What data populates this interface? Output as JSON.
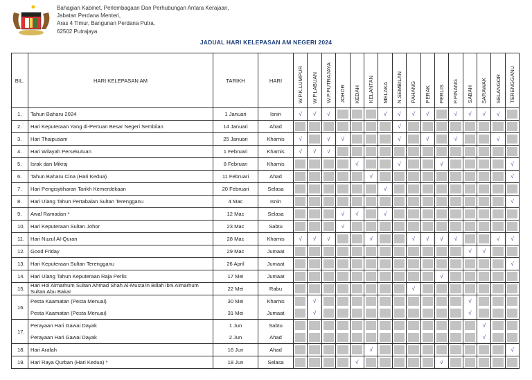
{
  "letterhead": {
    "lines": [
      "Bahagian Kabinet, Perlembagaan Dan Perhubungan Antara  Kerajaan,",
      "Jabatan Perdana Menteri,",
      "Aras 4 Timur, Bangunan Perdana Putra,",
      "62502 Putrajaya"
    ],
    "crest_icon": "malaysia-coat-of-arms"
  },
  "title": "JADUAL HARI KELEPASAN AM NEGERI 2024",
  "headers": {
    "bil": "BIL.",
    "name": "HARI KELEPASAN AM",
    "date": "TARIKH",
    "day": "HARI"
  },
  "states": [
    "W.P.K.LUMPUR",
    "W.P.LABUAN",
    "W.P.PUTRAJAYA",
    "JOHOR",
    "KEDAH",
    "KELANTAN",
    "MELAKA",
    "N.SEMBILAN",
    "PAHANG",
    "PERAK",
    "PERLIS",
    "P.PINANG",
    "SABAH",
    "SARAWAK",
    "SELANGOR",
    "TERENGGANU"
  ],
  "check_mark": "√",
  "colors": {
    "title": "#1f3f7a",
    "no_holiday": "#c3c3c3",
    "check": "#3a3a8a"
  },
  "rows": [
    {
      "bil": "1.",
      "items": [
        {
          "name": "Tahun Baharu 2024",
          "date": "1 Januari",
          "day": "Isnin",
          "marks": "1110001111011110"
        }
      ]
    },
    {
      "bil": "2.",
      "items": [
        {
          "name": "Hari Keputeraan Yang di-Pertuan Besar Negeri Sembilan",
          "date": "14 Januari",
          "day": "Ahad",
          "marks": "0000000100000000"
        }
      ]
    },
    {
      "bil": "3.",
      "items": [
        {
          "name": "Hari Thaipusam",
          "date": "25 Januari",
          "day": "Khamis",
          "marks": "1011000101010010"
        }
      ]
    },
    {
      "bil": "4.",
      "items": [
        {
          "name": "Hari Wilayah Persekutuan",
          "date": "1 Februari",
          "day": "Khamis",
          "marks": "1110000000000000"
        }
      ]
    },
    {
      "bil": "5.",
      "items": [
        {
          "name": "Israk dan Mikraj",
          "date": "8 Februari",
          "day": "Khamis",
          "marks": "0000100100100001"
        }
      ]
    },
    {
      "bil": "6.",
      "items": [
        {
          "name": "Tahun Baharu Cina (Hari Kedua)",
          "date": "11 Februari",
          "day": "Ahad",
          "marks": "0000010000000001"
        }
      ]
    },
    {
      "bil": "7.",
      "items": [
        {
          "name": "Hari Pengisytiharan Tarikh Kemerdekaan",
          "date": "20 Februari",
          "day": "Selasa",
          "marks": "0000001000000000"
        }
      ]
    },
    {
      "bil": "8.",
      "items": [
        {
          "name": "Hari Ulang Tahun Pertabalan Sultan Terengganu",
          "date": "4 Mac",
          "day": "Isnin",
          "marks": "0000000000000001"
        }
      ]
    },
    {
      "bil": "9.",
      "items": [
        {
          "name": "Awal Ramadan *",
          "date": "12 Mac",
          "day": "Selasa",
          "marks": "0001101000000000"
        }
      ]
    },
    {
      "bil": "10.",
      "items": [
        {
          "name": "Hari Keputeraan Sultan Johor",
          "date": "23 Mac",
          "day": "Sabtu",
          "marks": "0001000000000000"
        }
      ]
    },
    {
      "bil": "11.",
      "items": [
        {
          "name": "Hari Nuzul Al-Quran",
          "date": "28 Mac",
          "day": "Khamis",
          "marks": "1110010011110011"
        }
      ]
    },
    {
      "bil": "12.",
      "items": [
        {
          "name": "Good Friday",
          "date": "29 Mac",
          "day": "Jumaat",
          "marks": "0000000000001100"
        }
      ]
    },
    {
      "bil": "13.",
      "items": [
        {
          "name": "Hari Keputeraan Sultan Terengganu",
          "date": "26 April",
          "day": "Jumaat",
          "marks": "0000000000000001"
        }
      ]
    },
    {
      "bil": "14.",
      "items": [
        {
          "name": "Hari Ulang Tahun Keputeraan Raja Perlis",
          "date": "17 Mei",
          "day": "Jumaat",
          "marks": "0000000000100000"
        }
      ]
    },
    {
      "bil": "15.",
      "items": [
        {
          "name": "Hari Hol Almarhum Sultan Ahmad Shah Al-Musta'in Billah ibni Almarhum Sultan Abu Bakar",
          "date": "22 Mei",
          "day": "Rabu",
          "marks": "0000000010000000"
        }
      ]
    },
    {
      "bil": "16.",
      "items": [
        {
          "name": "Pesta Kaamatan (Pesta Menuai)",
          "date": "30 Mei",
          "day": "Khamis",
          "marks": "0100000000001000"
        },
        {
          "name": "Pesta Kaamatan (Pesta Menuai)",
          "date": "31 Mei",
          "day": "Jumaat",
          "marks": "0100000000001000"
        }
      ]
    },
    {
      "bil": "17.",
      "items": [
        {
          "name": "Perayaan Hari Gawai Dayak",
          "date": "1 Jun",
          "day": "Sabtu",
          "marks": "0000000000000100"
        },
        {
          "name": "Perayaan Hari Gawai Dayak",
          "date": "2 Jun",
          "day": "Ahad",
          "marks": "0000000000000100"
        }
      ]
    },
    {
      "bil": "18.",
      "items": [
        {
          "name": "Hari Arafah",
          "date": "16 Jun",
          "day": "Ahad",
          "marks": "0000010000000001"
        }
      ]
    },
    {
      "bil": "19.",
      "items": [
        {
          "name": "Hari Raya Qurban (Hari Kedua) *",
          "date": "18 Jun",
          "day": "Selasa",
          "marks": "0000100000100000"
        }
      ]
    }
  ]
}
